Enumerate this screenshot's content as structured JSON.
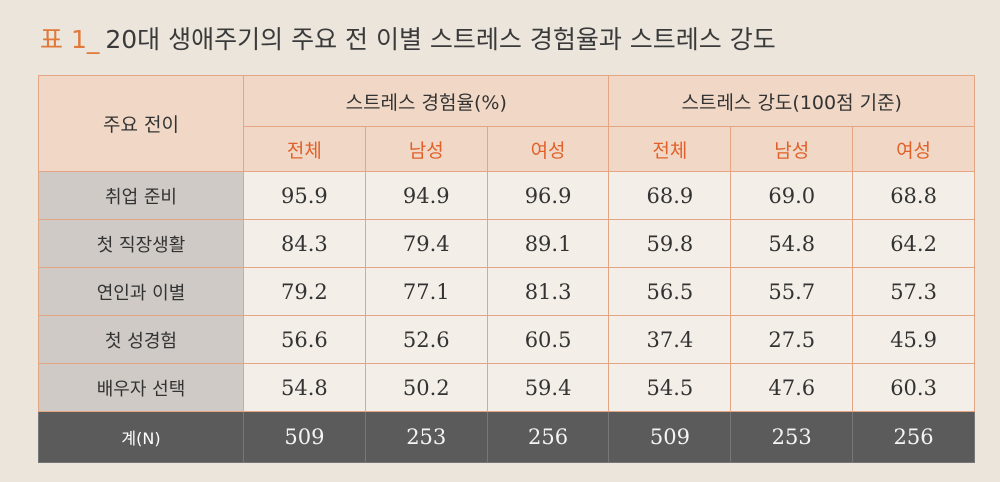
{
  "caption": {
    "label": "표 1_",
    "title": "20대 생애주기의 주요 전 이별 스트레스 경험율과 스트레스 강도"
  },
  "table": {
    "corner": "주요 전이",
    "groups": [
      "스트레스 경험율(%)",
      "스트레스 강도(100점 기준)"
    ],
    "subheaders": [
      "전체",
      "남성",
      "여성",
      "전체",
      "남성",
      "여성"
    ],
    "rows": [
      [
        "취업 준비",
        "95.9",
        "94.9",
        "96.9",
        "68.9",
        "69.0",
        "68.8"
      ],
      [
        "첫 직장생활",
        "84.3",
        "79.4",
        "89.1",
        "59.8",
        "54.8",
        "64.2"
      ],
      [
        "연인과 이별",
        "79.2",
        "77.1",
        "81.3",
        "56.5",
        "55.7",
        "57.3"
      ],
      [
        "첫 성경험",
        "56.6",
        "52.6",
        "60.5",
        "37.4",
        "27.5",
        "45.9"
      ],
      [
        "배우자 선택",
        "54.8",
        "50.2",
        "59.4",
        "54.5",
        "47.6",
        "60.3"
      ]
    ],
    "total": [
      "계(N)",
      "509",
      "253",
      "256",
      "509",
      "253",
      "256"
    ]
  }
}
